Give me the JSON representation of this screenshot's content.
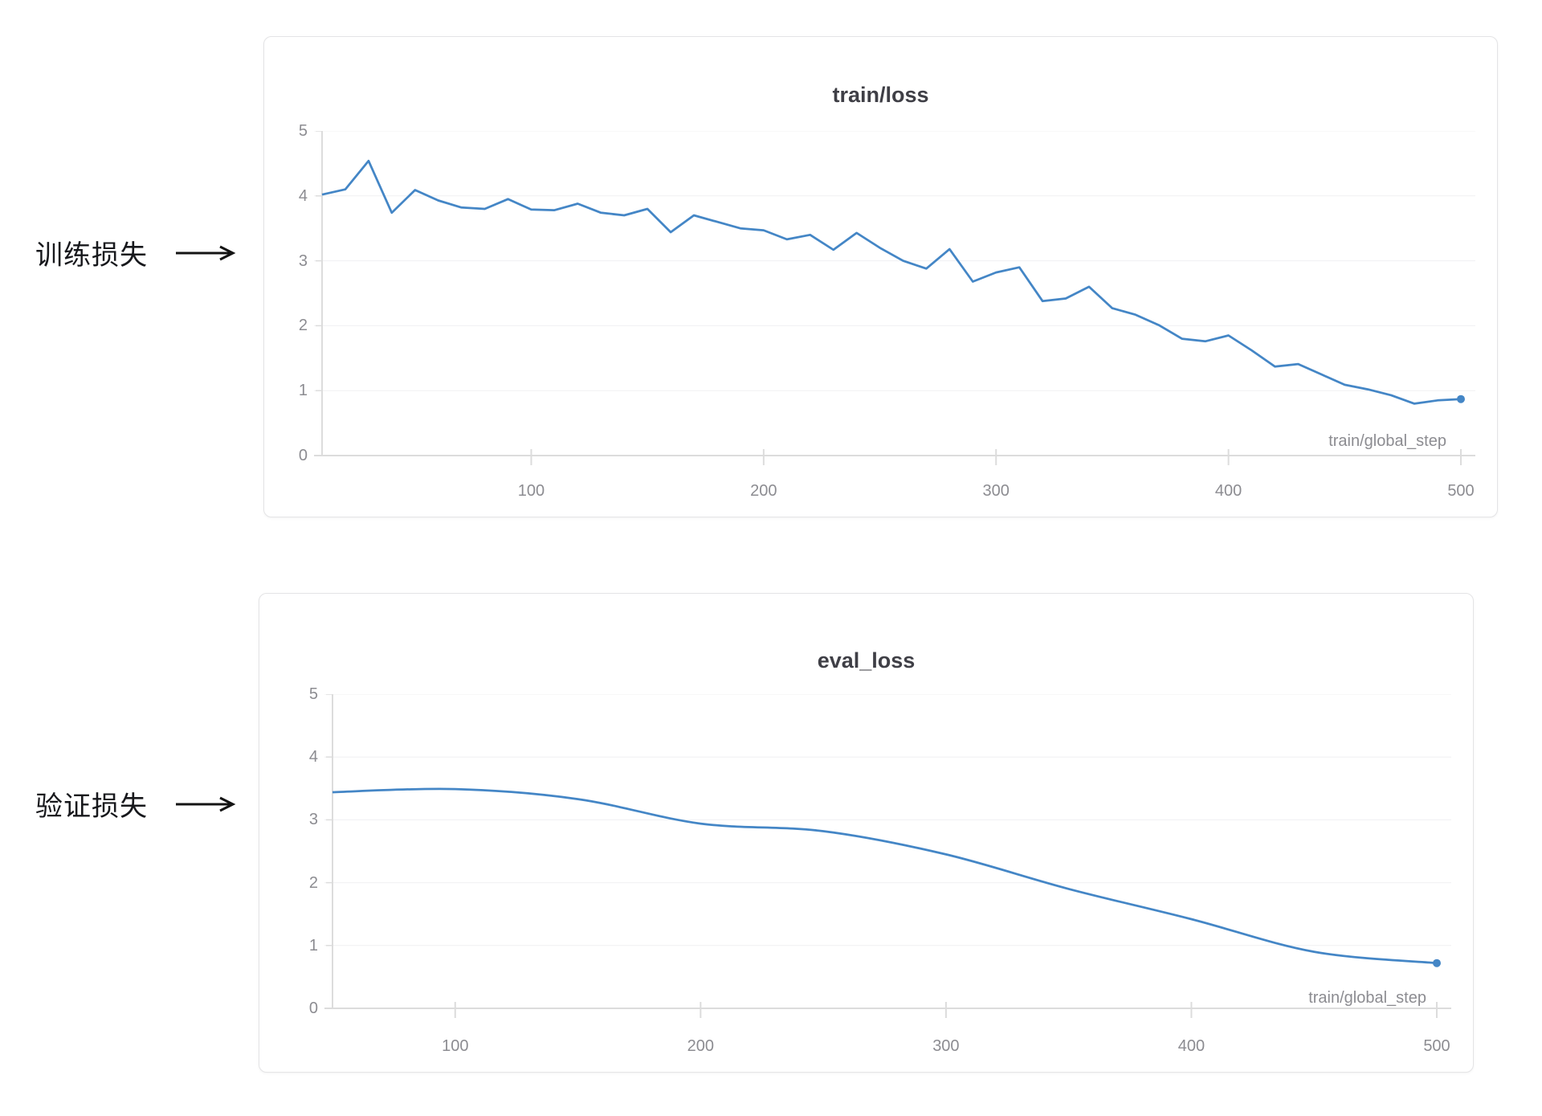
{
  "annotations": [
    {
      "label": "训练损失"
    },
    {
      "label": "验证损失"
    }
  ],
  "colors": {
    "line": "#4486c6",
    "grid": "#f0f0f2",
    "axis": "#dcdcdc",
    "tick_label": "#8c8c91",
    "title": "#3f3f46",
    "card_border": "#e4e4e6",
    "annotation_text": "#17181c",
    "arrow": "#141414"
  },
  "chart_data": [
    {
      "type": "line",
      "title": "train/loss",
      "xlabel": "train/global_step",
      "x": [
        10,
        20,
        30,
        40,
        50,
        60,
        70,
        80,
        90,
        100,
        110,
        120,
        130,
        140,
        150,
        160,
        170,
        180,
        190,
        200,
        210,
        220,
        230,
        240,
        250,
        260,
        270,
        280,
        290,
        300,
        310,
        320,
        330,
        340,
        350,
        360,
        370,
        380,
        390,
        400,
        410,
        420,
        430,
        440,
        450,
        460,
        470,
        480,
        490,
        500
      ],
      "values": [
        4.02,
        4.1,
        4.54,
        3.74,
        4.09,
        3.93,
        3.82,
        3.8,
        3.95,
        3.79,
        3.78,
        3.88,
        3.74,
        3.7,
        3.8,
        3.44,
        3.7,
        3.6,
        3.5,
        3.47,
        3.33,
        3.4,
        3.17,
        3.43,
        3.2,
        3.0,
        2.88,
        3.18,
        2.68,
        2.82,
        2.9,
        2.38,
        2.42,
        2.6,
        2.27,
        2.17,
        2.01,
        1.8,
        1.76,
        1.85,
        1.62,
        1.37,
        1.41,
        1.25,
        1.09,
        1.02,
        0.93,
        0.8,
        0.85,
        0.87
      ],
      "xlim": [
        10,
        500
      ],
      "ylim": [
        0,
        5
      ],
      "xticks": [
        100,
        200,
        300,
        400,
        500
      ],
      "yticks": [
        0,
        1,
        2,
        3,
        4,
        5
      ],
      "grid": "horizontal",
      "legend": "none",
      "smooth": false,
      "endpoint_marker": true
    },
    {
      "type": "line",
      "title": "eval_loss",
      "xlabel": "train/global_step",
      "x": [
        50,
        100,
        150,
        200,
        250,
        300,
        350,
        400,
        450,
        500
      ],
      "values": [
        3.44,
        3.49,
        3.33,
        2.94,
        2.82,
        2.45,
        1.9,
        1.42,
        0.9,
        0.72
      ],
      "xlim": [
        50,
        500
      ],
      "ylim": [
        0,
        5
      ],
      "xticks": [
        100,
        200,
        300,
        400,
        500
      ],
      "yticks": [
        0,
        1,
        2,
        3,
        4,
        5
      ],
      "grid": "horizontal",
      "legend": "none",
      "smooth": true,
      "endpoint_marker": true
    }
  ]
}
